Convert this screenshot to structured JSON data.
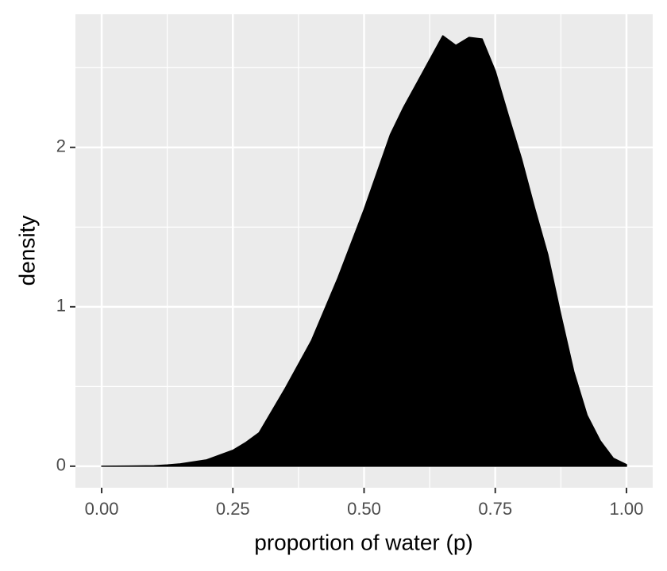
{
  "chart_data": {
    "type": "area",
    "x_label": "proportion of water (p)",
    "y_label": "density",
    "x": [
      0,
      0.05,
      0.1,
      0.125,
      0.15,
      0.2,
      0.25,
      0.275,
      0.3,
      0.35,
      0.4,
      0.45,
      0.5,
      0.55,
      0.575,
      0.6,
      0.625,
      0.65,
      0.675,
      0.7,
      0.725,
      0.75,
      0.775,
      0.8,
      0.825,
      0.85,
      0.875,
      0.9,
      0.925,
      0.95,
      0.975,
      1.0
    ],
    "values": [
      0,
      0.001,
      0.003,
      0.008,
      0.015,
      0.04,
      0.1,
      0.15,
      0.21,
      0.49,
      0.79,
      1.18,
      1.61,
      2.08,
      2.25,
      2.4,
      2.55,
      2.7,
      2.64,
      2.69,
      2.68,
      2.48,
      2.2,
      1.93,
      1.62,
      1.33,
      0.95,
      0.59,
      0.32,
      0.16,
      0.05,
      0.01
    ],
    "color": "#000000",
    "xlim": [
      -0.05,
      1.05
    ],
    "ylim": [
      -0.135,
      2.835
    ],
    "xticks": [
      {
        "value": 0,
        "label": "0.00"
      },
      {
        "value": 0.25,
        "label": "0.25"
      },
      {
        "value": 0.5,
        "label": "0.50"
      },
      {
        "value": 0.75,
        "label": "0.75"
      },
      {
        "value": 1,
        "label": "1.00"
      }
    ],
    "yticks": [
      0,
      1,
      2
    ],
    "x_minor_ticks": [
      0.125,
      0.375,
      0.625,
      0.875
    ],
    "y_minor_ticks": [
      0.5,
      1.5,
      2.5
    ],
    "grid": true
  }
}
